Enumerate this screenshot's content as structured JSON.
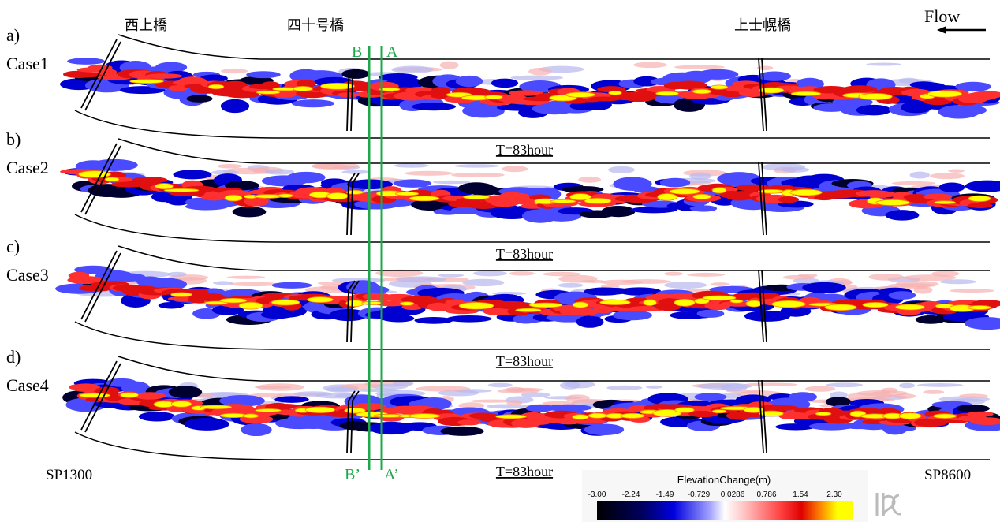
{
  "header": {
    "bridges": [
      "西上橋",
      "四十号橋",
      "上士幌橋"
    ],
    "flow": "Flow"
  },
  "panels": [
    {
      "label": "a)",
      "case": "Case1",
      "time": "T=83hour"
    },
    {
      "label": "b)",
      "case": "Case2",
      "time": "T=83hour"
    },
    {
      "label": "c)",
      "case": "Case3",
      "time": "T=83hour"
    },
    {
      "label": "d)",
      "case": "Case4",
      "time": "T=83hour"
    }
  ],
  "sections": {
    "b": "B",
    "a": "A",
    "b_prime": "B’",
    "a_prime": "A’"
  },
  "stations": {
    "start": "SP1300",
    "end": "SP8600"
  },
  "colorbar": {
    "title": "ElevationChange(m)",
    "ticks": [
      "-3.00",
      "-2.24",
      "-1.49",
      "-0.729",
      "0.0286",
      "0.786",
      "1.54",
      "2.30"
    ]
  }
}
